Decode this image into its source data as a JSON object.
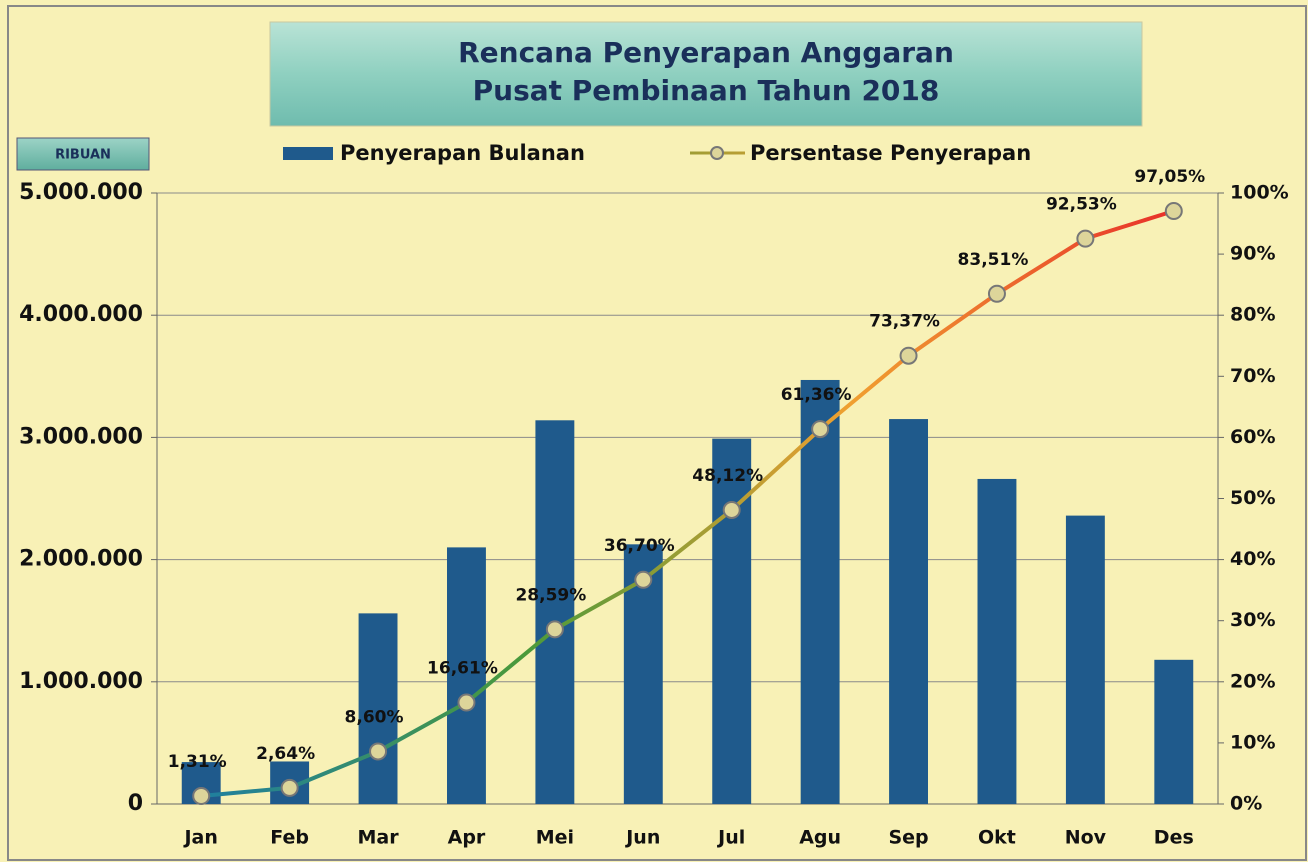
{
  "chart_data": {
    "type": "bar_line",
    "title": [
      "Rencana Penyerapan Anggaran",
      "Pusat Pembinaan Tahun 2018"
    ],
    "y_axis_label": "RIBUAN",
    "categories": [
      "Jan",
      "Feb",
      "Mar",
      "Apr",
      "Mei",
      "Jun",
      "Jul",
      "Agu",
      "Sep",
      "Okt",
      "Nov",
      "Des"
    ],
    "series": [
      {
        "name": "Penyerapan Bulanan",
        "type": "bar",
        "color": "#1f5a8c",
        "values": [
          343000,
          348000,
          1560000,
          2100000,
          3140000,
          2125000,
          2990000,
          3470000,
          3150000,
          2660000,
          2360000,
          1180000
        ]
      },
      {
        "name": "Persentase Penyerapan",
        "type": "line",
        "axis": "y2",
        "color": [
          "#1f7fa0",
          "#4a9a3a",
          "#f0a030",
          "#e8302a"
        ],
        "marker_color": "#ddd59a",
        "values": [
          1.31,
          2.64,
          8.6,
          16.61,
          28.59,
          36.7,
          48.12,
          61.36,
          73.37,
          83.51,
          92.53,
          97.05
        ],
        "value_labels": [
          "1,31%",
          "2,64%",
          "8,60%",
          "16,61%",
          "28,59%",
          "36,70%",
          "48,12%",
          "61,36%",
          "73,37%",
          "83,51%",
          "92,53%",
          "97,05%"
        ]
      }
    ],
    "ylim": [
      0,
      5000000
    ],
    "yticks": [
      0,
      {
        "value": 1000000,
        "label": "1.000.000"
      },
      {
        "value": 2000000,
        "label": "2.000.000"
      },
      {
        "value": 3000000,
        "label": "3.000.000"
      },
      {
        "value": 4000000,
        "label": "4.000.000"
      },
      {
        "value": 5000000,
        "label": "5.000.000"
      }
    ],
    "y2lim": [
      0,
      100
    ],
    "y2ticks": [
      {
        "value": 0,
        "label": "0%"
      },
      {
        "value": 10,
        "label": "10%"
      },
      {
        "value": 20,
        "label": "20%"
      },
      {
        "value": 30,
        "label": "30%"
      },
      {
        "value": 40,
        "label": "40%"
      },
      {
        "value": 50,
        "label": "50%"
      },
      {
        "value": 60,
        "label": "60%"
      },
      {
        "value": 70,
        "label": "70%"
      },
      {
        "value": 80,
        "label": "80%"
      },
      {
        "value": 90,
        "label": "90%"
      },
      {
        "value": 100,
        "label": "100%"
      }
    ],
    "grid": true
  }
}
